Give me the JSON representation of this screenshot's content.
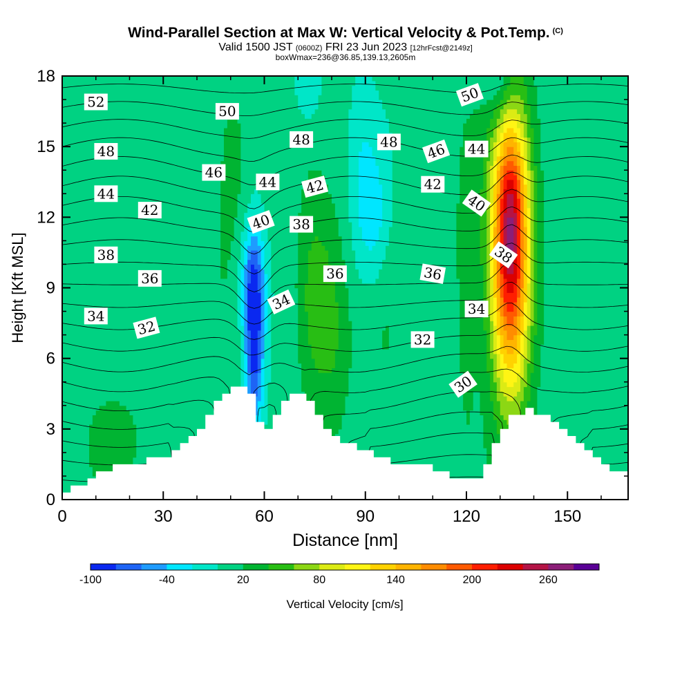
{
  "header": {
    "title": "Wind-Parallel Section at Max W: Vertical Velocity & Pot.Temp.",
    "copyright": "(C)",
    "valid_prefix": "Valid 1500 JST",
    "valid_utc": "(0600Z)",
    "valid_date": "FRI 23 Jun 2023",
    "forecast_info": "[12hrFcst@2149z]",
    "box_info": "boxWmax=236@36.85,139.13,2605m"
  },
  "chart_data": {
    "type": "heatmap",
    "xlabel": "Distance [nm]",
    "ylabel": "Height [Kft MSL]",
    "xlim": [
      0,
      168
    ],
    "ylim": [
      0,
      18
    ],
    "x_ticks": [
      0,
      30,
      60,
      90,
      120,
      150
    ],
    "y_ticks": [
      0,
      3,
      6,
      9,
      12,
      15,
      18
    ],
    "colorbar": {
      "label": "Vertical Velocity [cm/s]",
      "tick_labels": [
        "-100",
        "-40",
        "20",
        "80",
        "140",
        "200",
        "260"
      ],
      "tick_values": [
        -100,
        -40,
        20,
        80,
        140,
        200,
        260
      ],
      "min": -100,
      "max": 300,
      "bin_width": 20,
      "colors": [
        "#0a28f0",
        "#1e64f5",
        "#1e9bff",
        "#00e6ff",
        "#00e6c8",
        "#00d282",
        "#00b432",
        "#28be14",
        "#8cd714",
        "#dceb14",
        "#fff514",
        "#ffd200",
        "#ffb400",
        "#ff8c00",
        "#ff5a00",
        "#ff1e00",
        "#dc0000",
        "#b41446",
        "#8c1e78",
        "#5a0096"
      ]
    },
    "terrain": [
      [
        0,
        0.3
      ],
      [
        5,
        0.6
      ],
      [
        10,
        1.0
      ],
      [
        15,
        1.4
      ],
      [
        20,
        1.6
      ],
      [
        25,
        1.6
      ],
      [
        30,
        1.8
      ],
      [
        35,
        2.3
      ],
      [
        40,
        2.9
      ],
      [
        45,
        3.8
      ],
      [
        48,
        4.5
      ],
      [
        52,
        4.9
      ],
      [
        56,
        4.8
      ],
      [
        58,
        3.3
      ],
      [
        60,
        3.3
      ],
      [
        62,
        3.0
      ],
      [
        65,
        4.1
      ],
      [
        68,
        4.6
      ],
      [
        72,
        4.6
      ],
      [
        75,
        3.8
      ],
      [
        78,
        3.0
      ],
      [
        82,
        2.5
      ],
      [
        88,
        2.2
      ],
      [
        95,
        1.8
      ],
      [
        100,
        1.4
      ],
      [
        110,
        1.4
      ],
      [
        115,
        1.0
      ],
      [
        125,
        1.0
      ],
      [
        128,
        2.2
      ],
      [
        132,
        3.3
      ],
      [
        138,
        3.9
      ],
      [
        142,
        3.7
      ],
      [
        146,
        3.2
      ],
      [
        150,
        2.8
      ],
      [
        155,
        2.2
      ],
      [
        160,
        1.6
      ],
      [
        164,
        1.2
      ],
      [
        168,
        1.2
      ]
    ],
    "updrafts": [
      {
        "x": 133,
        "y": 10.5,
        "sx": 4.2,
        "sy": 4.2,
        "amp": 230
      },
      {
        "x": 133,
        "y": 12.5,
        "sx": 2.5,
        "sy": 2.0,
        "amp": 40
      },
      {
        "x": 75,
        "y": 8.5,
        "sx": 4.0,
        "sy": 3.0,
        "amp": 45
      },
      {
        "x": 81,
        "y": 7.0,
        "sx": 3.5,
        "sy": 3.0,
        "amp": 25
      },
      {
        "x": 50,
        "y": 14.0,
        "sx": 4.0,
        "sy": 4.0,
        "amp": 20
      },
      {
        "x": 120,
        "y": 9.0,
        "sx": 3.0,
        "sy": 5.0,
        "amp": 20
      },
      {
        "x": 15,
        "y": 3.0,
        "sx": 8.0,
        "sy": 2.0,
        "amp": 15
      },
      {
        "x": 95,
        "y": 6.0,
        "sx": 5.0,
        "sy": 3.0,
        "amp": 10
      }
    ],
    "downdrafts": [
      {
        "x": 57,
        "y": 7.0,
        "sx": 2.0,
        "sy": 2.8,
        "amp": -105
      },
      {
        "x": 56,
        "y": 9.5,
        "sx": 3.0,
        "sy": 1.6,
        "amp": -35
      },
      {
        "x": 89,
        "y": 13.5,
        "sx": 3.0,
        "sy": 3.0,
        "amp": -25
      },
      {
        "x": 93,
        "y": 12.0,
        "sx": 3.0,
        "sy": 2.0,
        "amp": -30
      },
      {
        "x": 130,
        "y": 18.0,
        "sx": 3.0,
        "sy": 1.5,
        "amp": -40
      },
      {
        "x": 73,
        "y": 18.0,
        "sx": 3.0,
        "sy": 1.5,
        "amp": -30
      },
      {
        "x": 100,
        "y": 4.0,
        "sx": 6.0,
        "sy": 2.0,
        "amp": -5
      }
    ],
    "background_w": 8,
    "theta_levels": [
      28,
      29,
      30,
      31,
      32,
      33,
      34,
      35,
      36,
      37,
      38,
      39,
      40,
      41,
      42,
      43,
      44,
      45,
      46,
      47,
      48,
      49,
      50,
      51,
      52,
      53
    ],
    "contour_labels": [
      {
        "text": "52",
        "x": 10,
        "y": 16.9,
        "angle": 0
      },
      {
        "text": "50",
        "x": 49,
        "y": 16.5,
        "angle": 0
      },
      {
        "text": "50",
        "x": 121,
        "y": 17.2,
        "angle": -20
      },
      {
        "text": "48",
        "x": 13,
        "y": 14.8,
        "angle": 0
      },
      {
        "text": "48",
        "x": 71,
        "y": 15.3,
        "angle": 0
      },
      {
        "text": "48",
        "x": 97,
        "y": 15.2,
        "angle": 0
      },
      {
        "text": "46",
        "x": 45,
        "y": 13.9,
        "angle": 0
      },
      {
        "text": "46",
        "x": 111,
        "y": 14.8,
        "angle": -20
      },
      {
        "text": "44",
        "x": 13,
        "y": 13.0,
        "angle": 0
      },
      {
        "text": "44",
        "x": 61,
        "y": 13.5,
        "angle": 0
      },
      {
        "text": "44",
        "x": 123,
        "y": 14.9,
        "angle": 0
      },
      {
        "text": "42",
        "x": 26,
        "y": 12.3,
        "angle": 0
      },
      {
        "text": "42",
        "x": 75,
        "y": 13.3,
        "angle": -15
      },
      {
        "text": "42",
        "x": 110,
        "y": 13.4,
        "angle": 0
      },
      {
        "text": "40",
        "x": 59,
        "y": 11.8,
        "angle": -20
      },
      {
        "text": "40",
        "x": 123,
        "y": 12.6,
        "angle": 35
      },
      {
        "text": "38",
        "x": 13,
        "y": 10.4,
        "angle": 0
      },
      {
        "text": "38",
        "x": 71,
        "y": 11.7,
        "angle": 0
      },
      {
        "text": "38",
        "x": 131,
        "y": 10.4,
        "angle": 35
      },
      {
        "text": "36",
        "x": 26,
        "y": 9.4,
        "angle": 0
      },
      {
        "text": "36",
        "x": 81,
        "y": 9.6,
        "angle": 0
      },
      {
        "text": "36",
        "x": 110,
        "y": 9.6,
        "angle": 10
      },
      {
        "text": "34",
        "x": 10,
        "y": 7.8,
        "angle": 0
      },
      {
        "text": "34",
        "x": 65,
        "y": 8.4,
        "angle": -25
      },
      {
        "text": "34",
        "x": 123,
        "y": 8.1,
        "angle": 0
      },
      {
        "text": "32",
        "x": 25,
        "y": 7.3,
        "angle": -15
      },
      {
        "text": "32",
        "x": 107,
        "y": 6.8,
        "angle": 0
      },
      {
        "text": "30",
        "x": 119,
        "y": 4.9,
        "angle": -35
      }
    ]
  }
}
